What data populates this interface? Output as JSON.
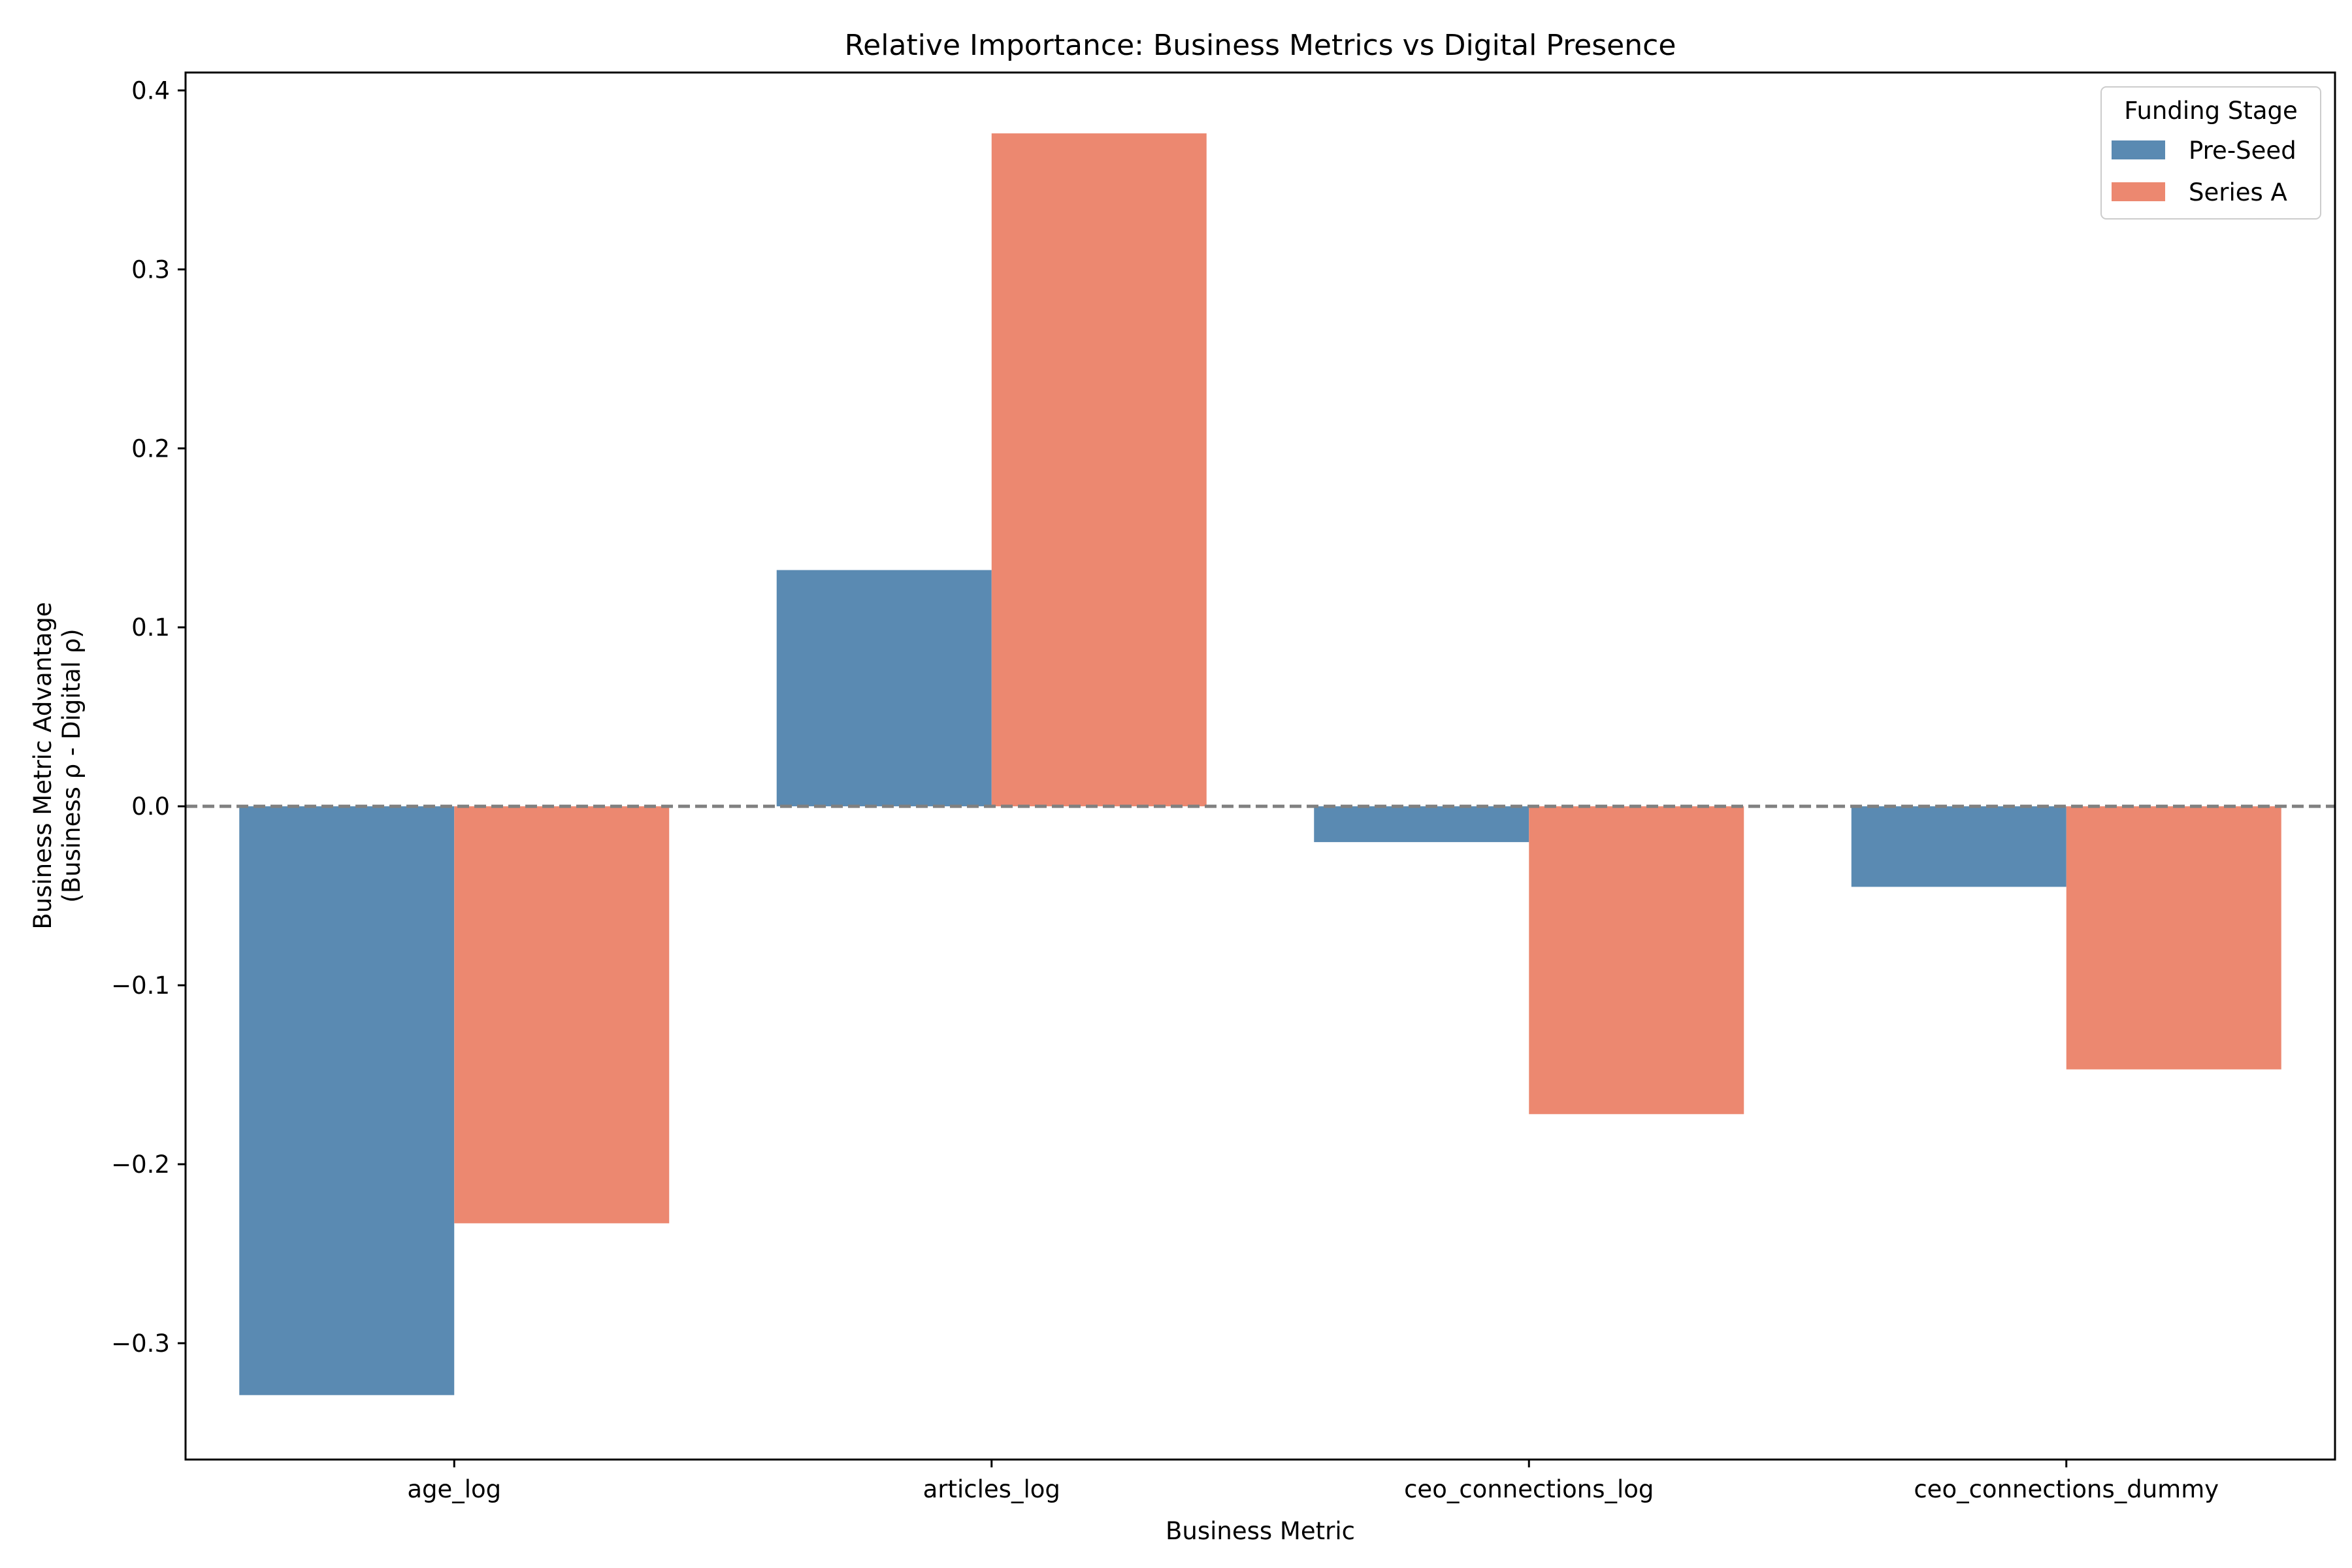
{
  "chart_data": {
    "type": "bar",
    "title": "Relative Importance: Business Metrics vs Digital Presence",
    "xlabel": "Business Metric",
    "ylabel_lines": [
      "Business Metric Advantage",
      "(Business ρ - Digital ρ)"
    ],
    "categories": [
      "age_log",
      "articles_log",
      "ceo_connections_log",
      "ceo_connections_dummy"
    ],
    "series": [
      {
        "name": "Pre-Seed",
        "color": "#5a8ab2",
        "values": [
          -0.329,
          0.132,
          -0.02,
          -0.045
        ]
      },
      {
        "name": "Series A",
        "color": "#ec8870",
        "values": [
          -0.233,
          0.376,
          -0.172,
          -0.147
        ]
      }
    ],
    "ylim": [
      -0.365,
      0.41
    ],
    "yticks": [
      -0.3,
      -0.2,
      -0.1,
      0.0,
      0.1,
      0.2,
      0.3,
      0.4
    ],
    "ytick_labels": [
      "−0.3",
      "−0.2",
      "−0.1",
      "0.0",
      "0.1",
      "0.2",
      "0.3",
      "0.4"
    ],
    "reference_line": {
      "y": 0,
      "style": "dashed",
      "color": "#808080"
    },
    "grid": false,
    "legend": {
      "title": "Funding Stage",
      "placement": "top-right"
    }
  }
}
